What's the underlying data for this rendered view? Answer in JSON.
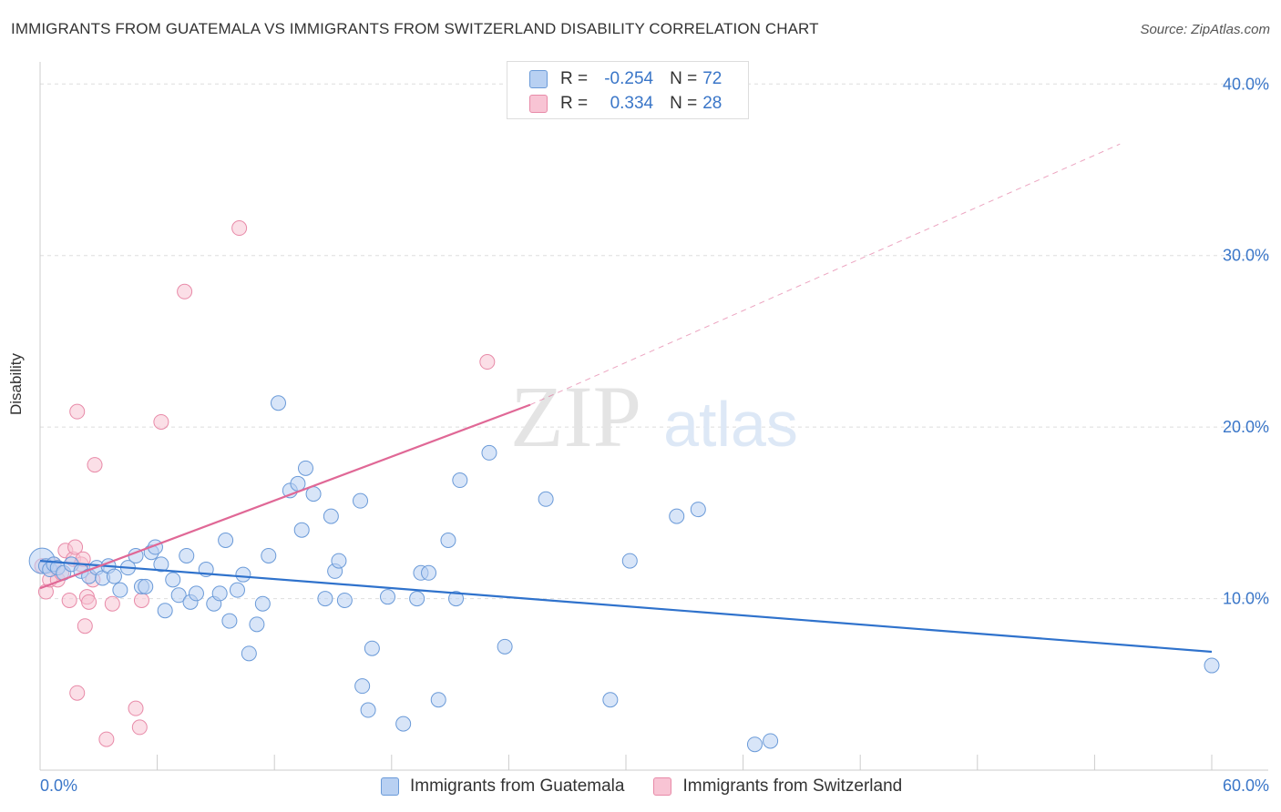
{
  "title": "IMMIGRANTS FROM GUATEMALA VS IMMIGRANTS FROM SWITZERLAND DISABILITY CORRELATION CHART",
  "source": "Source: ZipAtlas.com",
  "watermark": {
    "zip": "ZIP",
    "atlas": "atlas"
  },
  "legend": {
    "rows": [
      {
        "r_label": "R =",
        "r_value": "-0.254",
        "n_label": "N =",
        "n_value": "72"
      },
      {
        "r_label": "R =",
        "r_value": "0.334",
        "n_label": "N =",
        "n_value": "28"
      }
    ]
  },
  "bottom_legend": [
    "Immigrants from Guatemala",
    "Immigrants from Switzerland"
  ],
  "colors": {
    "guatemala_fill": "#b8d0f2",
    "guatemala_stroke": "#6a9ad8",
    "guatemala_line": "#2f72cc",
    "switzerland_fill": "#f8c4d4",
    "switzerland_stroke": "#e88aa8",
    "switzerland_line": "#e06896",
    "axis_text": "#3a76c8",
    "grid": "#dddddd"
  },
  "chart_data": {
    "type": "scatter",
    "title": "IMMIGRANTS FROM GUATEMALA VS IMMIGRANTS FROM SWITZERLAND DISABILITY CORRELATION CHART",
    "xlabel": "",
    "ylabel": "Disability",
    "xlim": [
      0,
      60
    ],
    "ylim": [
      0,
      41.5
    ],
    "x_tick_labels": [
      "0.0%",
      "60.0%"
    ],
    "y_ticks": [
      10,
      20,
      30,
      40
    ],
    "y_tick_labels": [
      "10.0%",
      "20.0%",
      "30.0%",
      "40.0%"
    ],
    "grid": true,
    "legend_position": "top-center",
    "series": [
      {
        "name": "Immigrants from Guatemala",
        "points": [
          [
            0.1,
            12.2
          ],
          [
            0.3,
            11.9
          ],
          [
            0.5,
            11.7
          ],
          [
            0.7,
            12.0
          ],
          [
            0.9,
            11.8
          ],
          [
            1.2,
            11.5
          ],
          [
            1.6,
            12.0
          ],
          [
            2.1,
            11.6
          ],
          [
            2.5,
            11.3
          ],
          [
            2.9,
            11.8
          ],
          [
            3.2,
            11.2
          ],
          [
            3.5,
            11.9
          ],
          [
            3.8,
            11.3
          ],
          [
            4.1,
            10.5
          ],
          [
            4.5,
            11.8
          ],
          [
            4.9,
            12.5
          ],
          [
            5.2,
            10.7
          ],
          [
            5.4,
            10.7
          ],
          [
            5.7,
            12.7
          ],
          [
            5.9,
            13.0
          ],
          [
            6.2,
            12.0
          ],
          [
            6.4,
            9.3
          ],
          [
            6.8,
            11.1
          ],
          [
            7.1,
            10.2
          ],
          [
            7.5,
            12.5
          ],
          [
            7.7,
            9.8
          ],
          [
            8.0,
            10.3
          ],
          [
            8.5,
            11.7
          ],
          [
            8.9,
            9.7
          ],
          [
            9.2,
            10.3
          ],
          [
            9.5,
            13.4
          ],
          [
            9.7,
            8.7
          ],
          [
            10.1,
            10.5
          ],
          [
            10.4,
            11.4
          ],
          [
            10.7,
            6.8
          ],
          [
            11.1,
            8.5
          ],
          [
            11.4,
            9.7
          ],
          [
            11.7,
            12.5
          ],
          [
            12.2,
            21.4
          ],
          [
            12.8,
            16.3
          ],
          [
            13.2,
            16.7
          ],
          [
            13.4,
            14.0
          ],
          [
            13.6,
            17.6
          ],
          [
            14.0,
            16.1
          ],
          [
            14.6,
            10.0
          ],
          [
            14.9,
            14.8
          ],
          [
            15.1,
            11.6
          ],
          [
            15.3,
            12.2
          ],
          [
            15.6,
            9.9
          ],
          [
            16.4,
            15.7
          ],
          [
            16.8,
            3.5
          ],
          [
            17.0,
            7.1
          ],
          [
            16.5,
            4.9
          ],
          [
            17.8,
            10.1
          ],
          [
            18.6,
            2.7
          ],
          [
            19.3,
            10.0
          ],
          [
            19.5,
            11.5
          ],
          [
            19.9,
            11.5
          ],
          [
            20.4,
            4.1
          ],
          [
            20.9,
            13.4
          ],
          [
            21.3,
            10.0
          ],
          [
            21.5,
            16.9
          ],
          [
            23.0,
            18.5
          ],
          [
            23.8,
            7.2
          ],
          [
            25.9,
            15.8
          ],
          [
            29.2,
            4.1
          ],
          [
            30.2,
            12.2
          ],
          [
            32.6,
            14.8
          ],
          [
            33.7,
            15.2
          ],
          [
            36.6,
            1.5
          ],
          [
            37.4,
            1.7
          ],
          [
            60.0,
            6.1
          ]
        ]
      },
      {
        "name": "Immigrants from Switzerland",
        "points": [
          [
            0.1,
            11.9
          ],
          [
            0.3,
            10.4
          ],
          [
            0.5,
            11.1
          ],
          [
            0.7,
            12.0
          ],
          [
            0.9,
            11.1
          ],
          [
            1.1,
            11.5
          ],
          [
            1.3,
            12.8
          ],
          [
            1.5,
            9.9
          ],
          [
            1.7,
            12.3
          ],
          [
            1.8,
            13.0
          ],
          [
            1.9,
            4.5
          ],
          [
            1.9,
            20.9
          ],
          [
            2.1,
            12.0
          ],
          [
            2.2,
            12.3
          ],
          [
            2.3,
            8.4
          ],
          [
            2.4,
            10.1
          ],
          [
            2.5,
            9.8
          ],
          [
            2.7,
            11.1
          ],
          [
            2.8,
            17.8
          ],
          [
            3.4,
            1.8
          ],
          [
            3.7,
            9.7
          ],
          [
            4.9,
            3.6
          ],
          [
            5.1,
            2.5
          ],
          [
            5.2,
            9.9
          ],
          [
            6.2,
            20.3
          ],
          [
            7.4,
            27.9
          ],
          [
            10.2,
            31.6
          ],
          [
            22.9,
            23.8
          ]
        ]
      }
    ],
    "trend_lines": [
      {
        "series": "Immigrants from Guatemala",
        "x": [
          0,
          60
        ],
        "y": [
          12.2,
          6.9
        ]
      },
      {
        "series": "Immigrants from Switzerland",
        "solid_x": [
          0,
          25.1
        ],
        "solid_y": [
          10.6,
          21.3
        ],
        "dashed_x": [
          25.1,
          55.3
        ],
        "dashed_y": [
          21.3,
          36.5
        ]
      }
    ]
  }
}
